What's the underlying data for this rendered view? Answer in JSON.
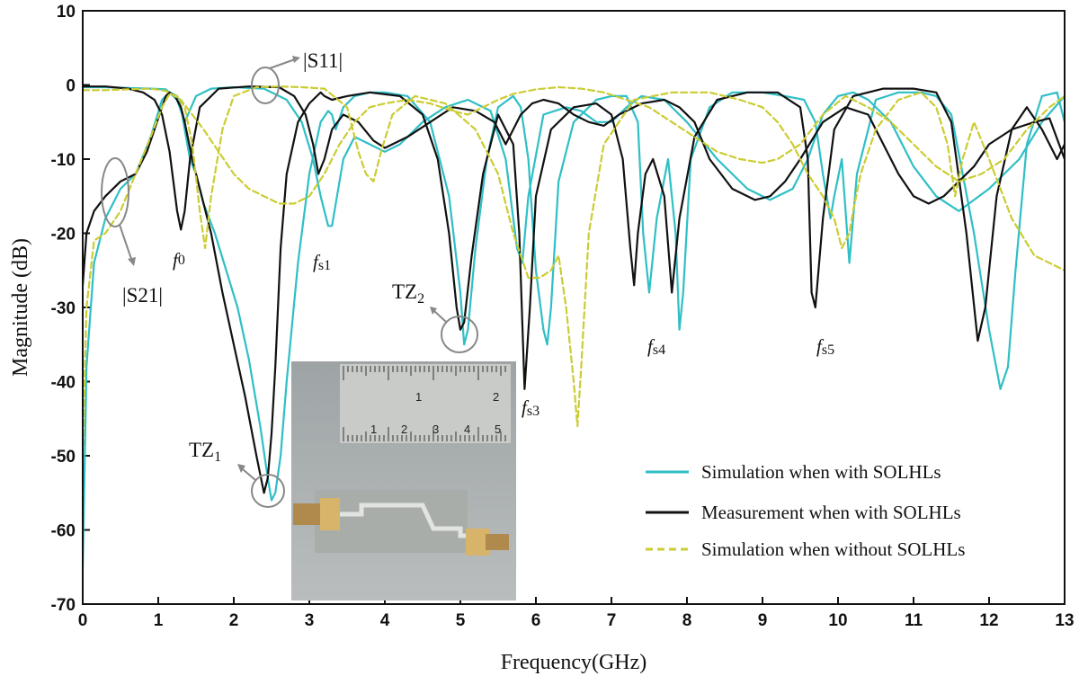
{
  "chart_data": {
    "type": "line",
    "xlabel": "Frequency(GHz)",
    "ylabel": "Magnitude (dB)",
    "xlim": [
      0,
      13
    ],
    "ylim": [
      -70,
      10
    ],
    "xticks": [
      0,
      1,
      2,
      3,
      4,
      5,
      6,
      7,
      8,
      9,
      10,
      11,
      12,
      13
    ],
    "yticks": [
      10,
      0,
      -10,
      -20,
      -30,
      -40,
      -50,
      -60,
      -70
    ],
    "grid": false,
    "legend": {
      "placement": "bottom-right",
      "entries": [
        "Simulation when with SOLHLs",
        "Measurement when with SOLHLs",
        "Simulation when without SOLHLs"
      ]
    },
    "series": [
      {
        "name": "Simulation when with SOLHLs",
        "color": "#2fbfc6",
        "dash": "solid",
        "kind": "S21",
        "x": [
          0,
          0.05,
          0.15,
          0.3,
          0.5,
          0.7,
          0.9,
          1.05,
          1.15,
          1.25,
          1.3,
          1.35,
          1.42,
          1.5,
          1.6,
          1.75,
          1.9,
          2.05,
          2.2,
          2.35,
          2.45,
          2.5,
          2.55,
          2.62,
          2.7,
          2.85,
          3.0,
          3.15,
          3.25,
          3.3,
          3.35,
          3.45,
          3.6,
          3.8,
          4.0,
          4.3,
          4.6,
          4.85,
          5.0,
          5.05,
          5.1,
          5.2,
          5.35,
          5.5,
          5.7,
          5.8,
          5.9,
          6.0,
          6.1,
          6.15,
          6.2,
          6.3,
          6.5,
          6.8,
          7.0,
          7.2,
          7.35,
          7.42,
          7.5,
          7.6,
          7.75,
          7.85,
          7.9,
          7.95,
          8.05,
          8.3,
          8.6,
          9.0,
          9.3,
          9.55,
          9.7,
          9.8,
          9.9,
          9.95,
          10.05,
          10.15,
          10.25,
          10.5,
          10.8,
          11.1,
          11.3,
          11.5,
          11.8,
          12.0,
          12.15,
          12.25,
          12.35,
          12.5,
          12.7,
          12.9,
          13.0
        ],
        "y": [
          -65,
          -38,
          -24,
          -18,
          -14,
          -12,
          -7,
          -2,
          -1,
          -1.5,
          -3,
          -6,
          -10,
          -12,
          -16,
          -20,
          -25,
          -30,
          -37,
          -46,
          -53,
          -56,
          -55,
          -50,
          -40,
          -24,
          -12,
          -5,
          -3.5,
          -4,
          -6,
          -3,
          -1.5,
          -1,
          -1,
          -1.5,
          -5,
          -15,
          -28,
          -35,
          -33,
          -22,
          -10,
          -3,
          -1.5,
          -3,
          -10,
          -25,
          -33,
          -35,
          -30,
          -13,
          -5,
          -2,
          -1.5,
          -1.5,
          -5,
          -20,
          -28,
          -18,
          -10,
          -20,
          -33,
          -28,
          -10,
          -3,
          -1,
          -1,
          -1.5,
          -2,
          -5,
          -12,
          -18,
          -15,
          -10,
          -24,
          -12,
          -2,
          -1,
          -1,
          -1.5,
          -4,
          -20,
          -33,
          -41,
          -38,
          -25,
          -8,
          -1.5,
          -1,
          -5
        ]
      },
      {
        "name": "Simulation when with SOLHLs",
        "color": "#2fbfc6",
        "dash": "solid",
        "kind": "S11",
        "x": [
          0,
          0.3,
          0.6,
          0.9,
          1.1,
          1.25,
          1.35,
          1.5,
          1.7,
          2.0,
          2.4,
          2.7,
          2.9,
          3.05,
          3.15,
          3.25,
          3.3,
          3.35,
          3.45,
          3.6,
          3.8,
          4.0,
          4.2,
          4.5,
          4.8,
          5.1,
          5.4,
          5.6,
          5.75,
          5.82,
          5.9,
          6.1,
          6.4,
          6.6,
          6.8,
          7.0,
          7.2,
          7.4,
          7.7,
          8.0,
          8.4,
          8.8,
          9.1,
          9.4,
          9.6,
          9.8,
          10.0,
          10.2,
          10.4,
          10.7,
          11.0,
          11.3,
          11.6,
          12.0,
          12.4,
          12.7,
          13.0
        ],
        "y": [
          -0.3,
          -0.3,
          -0.4,
          -0.5,
          -0.6,
          -2,
          -5,
          -1.5,
          -0.5,
          -0.3,
          -0.5,
          -2,
          -5,
          -10,
          -15,
          -19,
          -19,
          -16,
          -10,
          -7,
          -8,
          -9,
          -8,
          -5,
          -3,
          -2,
          -3.5,
          -10,
          -22,
          -24,
          -15,
          -4,
          -3,
          -3.5,
          -5,
          -5,
          -3,
          -1.5,
          -2,
          -5,
          -10,
          -14,
          -15.5,
          -14,
          -10,
          -4,
          -1.5,
          -1,
          -2,
          -5,
          -11,
          -15,
          -17,
          -14,
          -10,
          -5,
          -1.5
        ]
      },
      {
        "name": "Measurement when with SOLHLs",
        "color": "#111111",
        "dash": "solid",
        "kind": "S21",
        "x": [
          0,
          0.05,
          0.15,
          0.3,
          0.5,
          0.7,
          0.85,
          0.95,
          1.05,
          1.1,
          1.15,
          1.22,
          1.3,
          1.35,
          1.45,
          1.55,
          1.7,
          1.85,
          2.0,
          2.15,
          2.3,
          2.4,
          2.45,
          2.5,
          2.55,
          2.62,
          2.7,
          2.85,
          3.0,
          3.1,
          3.15,
          3.2,
          3.3,
          3.5,
          3.8,
          4.2,
          4.5,
          4.7,
          4.85,
          4.95,
          5.0,
          5.05,
          5.15,
          5.3,
          5.5,
          5.7,
          5.78,
          5.85,
          5.92,
          6.0,
          6.2,
          6.5,
          6.8,
          7.0,
          7.15,
          7.25,
          7.3,
          7.35,
          7.45,
          7.55,
          7.7,
          7.8,
          7.9,
          8.1,
          8.4,
          8.8,
          9.2,
          9.5,
          9.6,
          9.65,
          9.7,
          9.8,
          9.95,
          10.2,
          10.6,
          11.0,
          11.3,
          11.5,
          11.7,
          11.85,
          11.95,
          12.1,
          12.3,
          12.5,
          12.7,
          12.9,
          13.0
        ],
        "y": [
          -27,
          -20,
          -17,
          -15,
          -13,
          -12,
          -9,
          -6,
          -3,
          -1.5,
          -1,
          -1.5,
          -3,
          -5,
          -10,
          -14,
          -20,
          -28,
          -35,
          -42,
          -50,
          -55,
          -53,
          -47,
          -38,
          -22,
          -12,
          -5,
          -2.5,
          -1.5,
          -1,
          -1.5,
          -2,
          -1.5,
          -1,
          -1.5,
          -4,
          -10,
          -20,
          -30,
          -33,
          -32,
          -23,
          -12,
          -4,
          -8,
          -20,
          -41,
          -30,
          -15,
          -6,
          -3,
          -2.5,
          -4,
          -10,
          -22,
          -27,
          -20,
          -12,
          -10,
          -15,
          -28,
          -18,
          -7,
          -2,
          -1,
          -1,
          -3,
          -10,
          -28,
          -30,
          -18,
          -6,
          -1.5,
          -0.5,
          -0.5,
          -1,
          -5,
          -20,
          -34.5,
          -30,
          -15,
          -6,
          -3,
          -6,
          -10,
          -8
        ]
      },
      {
        "name": "Measurement when with SOLHLs",
        "color": "#111111",
        "dash": "solid",
        "kind": "S11",
        "x": [
          0,
          0.3,
          0.6,
          0.8,
          0.95,
          1.05,
          1.15,
          1.25,
          1.3,
          1.35,
          1.42,
          1.55,
          1.8,
          2.2,
          2.6,
          2.8,
          2.95,
          3.05,
          3.12,
          3.2,
          3.3,
          3.45,
          3.65,
          3.85,
          4.0,
          4.3,
          4.6,
          4.9,
          5.2,
          5.45,
          5.6,
          5.7,
          5.8,
          5.95,
          6.1,
          6.3,
          6.5,
          6.7,
          6.9,
          7.1,
          7.4,
          7.7,
          7.9,
          8.1,
          8.3,
          8.6,
          8.9,
          9.1,
          9.3,
          9.5,
          9.8,
          10.1,
          10.4,
          10.6,
          10.8,
          11.0,
          11.2,
          11.4,
          11.6,
          11.8,
          12.0,
          12.3,
          12.6,
          12.8,
          13.0
        ],
        "y": [
          -0.2,
          -0.2,
          -0.5,
          -1,
          -2,
          -4,
          -9,
          -17,
          -19.5,
          -17,
          -10,
          -3,
          -0.5,
          -0.2,
          -0.3,
          -1.5,
          -4,
          -8,
          -12,
          -10,
          -6,
          -4,
          -5,
          -7.5,
          -8.5,
          -7,
          -5,
          -3,
          -3.5,
          -5,
          -8,
          -6,
          -4,
          -2.5,
          -2,
          -2.5,
          -4,
          -5,
          -5.5,
          -4,
          -2.5,
          -2,
          -3,
          -5,
          -10,
          -14,
          -15.5,
          -15,
          -13,
          -10,
          -5,
          -3,
          -4,
          -8,
          -12,
          -15,
          -16,
          -15,
          -13,
          -11,
          -8,
          -6,
          -5,
          -4.5,
          -10
        ]
      },
      {
        "name": "Simulation when without SOLHLs",
        "color": "#cccc33",
        "dash": "dashed",
        "kind": "S21",
        "x": [
          0,
          0.05,
          0.15,
          0.3,
          0.5,
          0.7,
          0.9,
          1.05,
          1.15,
          1.25,
          1.35,
          1.45,
          1.55,
          1.62,
          1.7,
          1.85,
          2.0,
          2.3,
          2.6,
          2.9,
          3.2,
          3.5,
          3.65,
          3.75,
          3.85,
          3.95,
          4.1,
          4.4,
          4.8,
          5.2,
          5.5,
          5.7,
          5.9,
          6.05,
          6.2,
          6.3,
          6.4,
          6.5,
          6.55,
          6.6,
          6.7,
          6.9,
          7.3,
          7.8,
          8.3,
          8.7,
          9.0,
          9.2,
          9.4,
          9.6,
          9.8,
          9.95,
          10.05,
          10.15,
          10.2,
          10.3,
          10.5,
          10.8,
          11.1,
          11.3,
          11.45,
          11.55,
          11.65,
          11.8,
          12.0,
          12.3,
          12.6,
          13.0
        ],
        "y": [
          -50,
          -30,
          -21,
          -20,
          -17,
          -12,
          -7,
          -3,
          -1.2,
          -1.5,
          -3,
          -8,
          -17,
          -22,
          -15,
          -6,
          -1.5,
          -0.3,
          -0.2,
          -0.3,
          -0.5,
          -3,
          -9,
          -12,
          -13,
          -9,
          -4,
          -1.5,
          -2.5,
          -6,
          -12,
          -20,
          -26,
          -26,
          -25,
          -23,
          -30,
          -40,
          -46,
          -38,
          -20,
          -8,
          -2,
          -1,
          -1,
          -2,
          -3,
          -5,
          -8,
          -12,
          -15,
          -18,
          -22,
          -20,
          -17,
          -12,
          -6,
          -2,
          -1,
          -3,
          -8,
          -15,
          -10,
          -5,
          -10,
          -18,
          -23,
          -25
        ]
      },
      {
        "name": "Simulation when without SOLHLs",
        "color": "#cccc33",
        "dash": "dashed",
        "kind": "S11",
        "x": [
          0,
          0.3,
          0.6,
          0.9,
          1.1,
          1.3,
          1.45,
          1.6,
          1.8,
          2.0,
          2.2,
          2.4,
          2.6,
          2.8,
          3.0,
          3.2,
          3.4,
          3.6,
          3.8,
          4.0,
          4.3,
          4.6,
          4.9,
          5.1,
          5.3,
          5.5,
          5.7,
          6.0,
          6.3,
          6.6,
          6.9,
          7.2,
          7.5,
          7.8,
          8.1,
          8.4,
          8.7,
          9.0,
          9.2,
          9.5,
          9.8,
          10.1,
          10.4,
          10.7,
          11.0,
          11.3,
          11.6,
          11.9,
          12.2,
          12.5,
          12.8,
          13.0
        ],
        "y": [
          -0.7,
          -0.7,
          -0.6,
          -0.5,
          -0.8,
          -2,
          -4,
          -6,
          -9,
          -12,
          -14,
          -15,
          -16,
          -16,
          -15,
          -12,
          -8,
          -5,
          -3,
          -2.5,
          -2,
          -2.5,
          -3.5,
          -4,
          -3,
          -2,
          -1.2,
          -0.6,
          -0.3,
          -0.5,
          -1,
          -2,
          -3,
          -5,
          -7,
          -9,
          -10,
          -10.5,
          -10,
          -8,
          -4,
          -1.5,
          -3,
          -5,
          -8,
          -11,
          -13,
          -12,
          -10,
          -6,
          -3,
          -1.5
        ]
      }
    ],
    "annotations": {
      "s11": "|S11|",
      "s21": "|S21|",
      "tz1_main": "TZ",
      "tz1_sub": "1",
      "tz2_main": "TZ",
      "tz2_sub": "2",
      "f0_main": "f",
      "f0_sub": "0",
      "fs1_main": "f",
      "fs1_sub": "s1",
      "fs3_main": "f",
      "fs3_sub": "s3",
      "fs4_main": "f",
      "fs4_sub": "s4",
      "fs5_main": "f",
      "fs5_sub": "s5"
    },
    "inset_photo": {
      "ruler_top_numbers": [
        "1",
        "2"
      ],
      "ruler_bottom_numbers": [
        "1",
        "2",
        "3",
        "4",
        "5"
      ]
    }
  }
}
